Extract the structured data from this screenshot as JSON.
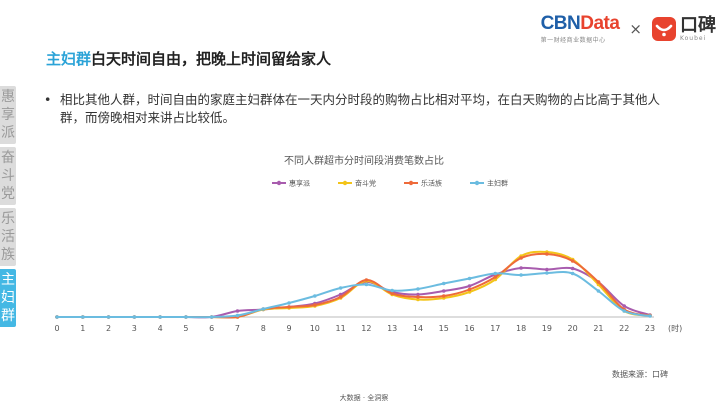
{
  "brand": {
    "cbn_part1": "CBN",
    "cbn_part2": "Data",
    "cbn_sub": "第一财经商业数据中心",
    "times": "×",
    "koubei_cn": "口碑",
    "koubei_en": "Koubei",
    "cbn_color": "#1f5fa8",
    "accent_color": "#e8432e"
  },
  "headline": {
    "highlight": "主妇群",
    "rest": "白天时间自由，把晚上时间留给家人",
    "highlight_color": "#2ba3d7"
  },
  "sidebar": {
    "tabs": [
      {
        "label": "惠享派",
        "active": false
      },
      {
        "label": "奋斗党",
        "active": false
      },
      {
        "label": "乐活族",
        "active": false
      },
      {
        "label": "主妇群",
        "active": true
      }
    ]
  },
  "bullet": {
    "marker": "•",
    "text": "相比其他人群，时间自由的家庭主妇群体在一天内分时段的购物占比相对平均，在白天购物的占比高于其他人群，而傍晚相对来讲占比较低。"
  },
  "source": "数据来源：口碑",
  "footer": "大数据 · 全洞察",
  "chart_data": {
    "type": "line",
    "title": "不同人群超市分时间段消费笔数占比",
    "x": [
      0,
      1,
      2,
      3,
      4,
      5,
      6,
      7,
      8,
      9,
      10,
      11,
      12,
      13,
      14,
      15,
      16,
      17,
      18,
      19,
      20,
      21,
      22,
      23
    ],
    "x_unit": "(时)",
    "ylim": [
      0,
      0.19
    ],
    "y_axis_visible": false,
    "grid": false,
    "legend_position": "top",
    "series": [
      {
        "name": "惠享派",
        "color": "#a85cae",
        "values": [
          0,
          0,
          0,
          0,
          0,
          0,
          0,
          0.012,
          0.015,
          0.02,
          0.027,
          0.045,
          0.07,
          0.05,
          0.045,
          0.052,
          0.062,
          0.085,
          0.098,
          0.095,
          0.097,
          0.07,
          0.022,
          0.004
        ]
      },
      {
        "name": "奋斗党",
        "color": "#f3c419",
        "values": [
          0,
          0,
          0,
          0,
          0,
          0,
          0,
          0,
          0.015,
          0.018,
          0.022,
          0.038,
          0.072,
          0.045,
          0.035,
          0.038,
          0.05,
          0.075,
          0.122,
          0.13,
          0.115,
          0.065,
          0.012,
          0.003
        ]
      },
      {
        "name": "乐活族",
        "color": "#ee6a3a",
        "values": [
          0,
          0,
          0,
          0,
          0,
          0,
          0,
          0,
          0.016,
          0.02,
          0.024,
          0.04,
          0.074,
          0.047,
          0.04,
          0.042,
          0.055,
          0.08,
          0.118,
          0.126,
          0.112,
          0.07,
          0.015,
          0.003
        ]
      },
      {
        "name": "主妇群",
        "color": "#6bbce0",
        "values": [
          0,
          0,
          0,
          0,
          0,
          0,
          0,
          0.003,
          0.016,
          0.028,
          0.042,
          0.058,
          0.065,
          0.053,
          0.056,
          0.067,
          0.077,
          0.087,
          0.084,
          0.088,
          0.087,
          0.052,
          0.012,
          0.002
        ]
      }
    ]
  }
}
